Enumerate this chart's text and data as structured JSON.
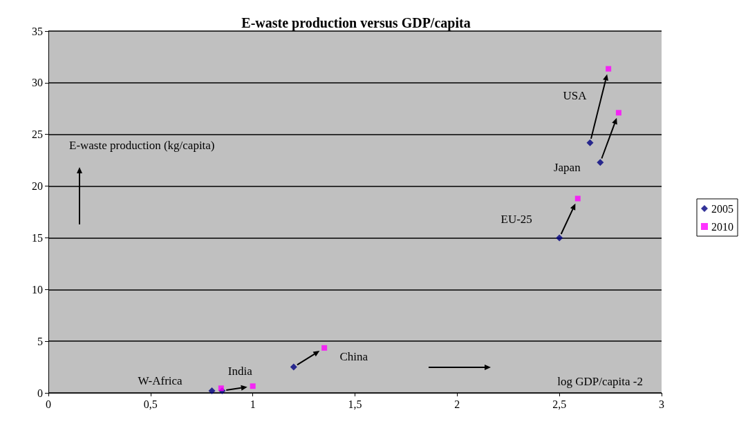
{
  "chart_data": {
    "type": "scatter",
    "title": "E-waste production versus GDP/capita",
    "xlabel": "log GDP/capita -2",
    "ylabel": "E-waste production (kg/capita)",
    "series": [
      {
        "name": "2005",
        "color": "#000080",
        "marker": "diamond",
        "x": [
          0.8,
          0.85,
          1.2,
          2.5,
          2.7,
          2.65
        ],
        "values": [
          0.2,
          0.2,
          2.5,
          15,
          22.3,
          24.2
        ]
      },
      {
        "name": "2010",
        "color": "#ff00ff",
        "marker": "square",
        "x": [
          0.845,
          1.0,
          1.35,
          2.59,
          2.79,
          2.74
        ],
        "values": [
          0.45,
          0.65,
          4.35,
          18.8,
          27.1,
          31.35
        ]
      }
    ],
    "annotations": [
      "W-Africa",
      "India",
      "China",
      "EU-25",
      "Japan",
      "USA"
    ],
    "xlim": [
      0,
      3
    ],
    "xticks": [
      0,
      {
        "value": 0.5,
        "label": "0,5"
      },
      1,
      {
        "value": 1.5,
        "label": "1,5"
      },
      2,
      {
        "value": 2.5,
        "label": "2,5"
      },
      3
    ],
    "ylim": [
      0,
      35
    ],
    "yticks": [
      0,
      5,
      10,
      15,
      20,
      25,
      30,
      35
    ],
    "grid": "y",
    "legend": "right"
  }
}
